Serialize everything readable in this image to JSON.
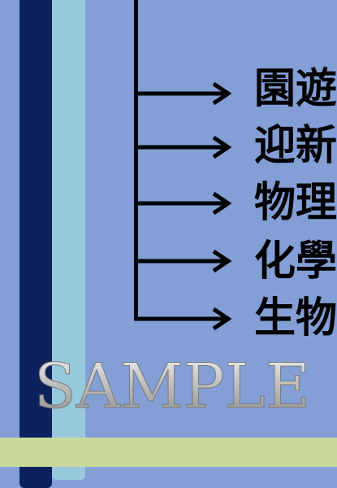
{
  "items": [
    {
      "label": "園遊"
    },
    {
      "label": "迎新"
    },
    {
      "label": "物理"
    },
    {
      "label": "化學"
    },
    {
      "label": "生物"
    }
  ],
  "watermark": {
    "text": "SAMPLE"
  },
  "colors": {
    "background": "#839fd6",
    "navy_band": "#0d215c",
    "light_band": "#97c9dd",
    "green_bar": "#c9d99b",
    "ink": "#000000"
  }
}
